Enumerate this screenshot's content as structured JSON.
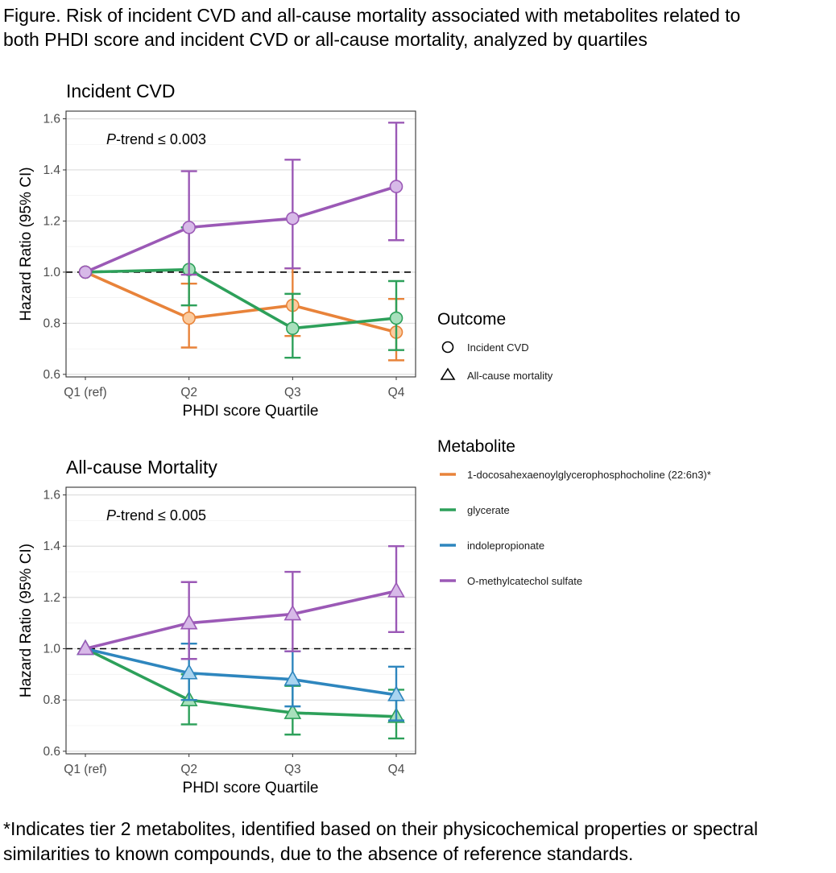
{
  "figure": {
    "title_line1": "Figure. Risk of incident CVD and all-cause mortality associated with metabolites related to",
    "title_line2": "both PHDI score and incident CVD or all-cause mortality, analyzed by quartiles",
    "footnote_line1": "*Indicates tier 2 metabolites, identified based on their physicochemical properties or spectral",
    "footnote_line2": "similarities to known compounds, due to the absence of reference standards."
  },
  "colors": {
    "1-docosahexaenoylglycerophosphocholine (22:6n3)*": "#E8833A",
    "glycerate": "#2DA05A",
    "indolepropionate": "#2E86BE",
    "O-methylcatechol sulfate": "#9B59B6"
  },
  "fill_colors": {
    "1-docosahexaenoylglycerophosphocholine (22:6n3)*": "#FBCB9E",
    "glycerate": "#A8E0BC",
    "indolepropionate": "#A9D4F0",
    "O-methylcatechol sulfate": "#D7B9E8"
  },
  "legend": {
    "outcome_title": "Outcome",
    "outcome_items": [
      {
        "label": "Incident CVD",
        "shape": "circle"
      },
      {
        "label": "All-cause mortality",
        "shape": "triangle"
      }
    ],
    "metabolite_title": "Metabolite",
    "metabolite_items": [
      "1-docosahexaenoylglycerophosphocholine (22:6n3)*",
      "glycerate",
      "indolepropionate",
      "O-methylcatechol sulfate"
    ]
  },
  "chart_data": [
    {
      "type": "line",
      "title": "Incident CVD",
      "annotation_prefix": "P",
      "annotation_suffix": "-trend ≤ 0.003",
      "xlabel": "PHDI score Quartile",
      "ylabel": "Hazard Ratio (95% CI)",
      "categories": [
        "Q1 (ref)",
        "Q2",
        "Q3",
        "Q4"
      ],
      "ylim": [
        0.59,
        1.63
      ],
      "yticks": [
        "0.6",
        "0.8",
        "1.0",
        "1.2",
        "1.4",
        "1.6"
      ],
      "reference_line": 1.0,
      "marker": "circle",
      "series": [
        {
          "name": "1-docosahexaenoylglycerophosphocholine (22:6n3)*",
          "values": [
            1.0,
            0.82,
            0.87,
            0.765
          ],
          "lower": [
            null,
            0.705,
            0.75,
            0.655
          ],
          "upper": [
            null,
            0.955,
            1.015,
            0.895
          ]
        },
        {
          "name": "glycerate",
          "values": [
            1.0,
            1.01,
            0.78,
            0.82
          ],
          "lower": [
            null,
            0.87,
            0.665,
            0.695
          ],
          "upper": [
            null,
            1.175,
            0.915,
            0.965
          ]
        },
        {
          "name": "O-methylcatechol sulfate",
          "values": [
            1.0,
            1.175,
            1.21,
            1.335
          ],
          "lower": [
            null,
            0.99,
            1.015,
            1.125
          ],
          "upper": [
            null,
            1.395,
            1.44,
            1.585
          ]
        }
      ]
    },
    {
      "type": "line",
      "title": "All-cause Mortality",
      "annotation_prefix": "P",
      "annotation_suffix": "-trend ≤ 0.005",
      "xlabel": "PHDI score Quartile",
      "ylabel": "Hazard Ratio (95% CI)",
      "categories": [
        "Q1 (ref)",
        "Q2",
        "Q3",
        "Q4"
      ],
      "ylim": [
        0.59,
        1.63
      ],
      "yticks": [
        "0.6",
        "0.8",
        "1.0",
        "1.2",
        "1.4",
        "1.6"
      ],
      "reference_line": 1.0,
      "marker": "triangle",
      "series": [
        {
          "name": "glycerate",
          "values": [
            1.0,
            0.8,
            0.75,
            0.735
          ],
          "lower": [
            null,
            0.705,
            0.665,
            0.65
          ],
          "upper": [
            null,
            0.9,
            0.855,
            0.84
          ]
        },
        {
          "name": "indolepropionate",
          "values": [
            1.0,
            0.905,
            0.88,
            0.82
          ],
          "lower": [
            null,
            0.8,
            0.775,
            0.72
          ],
          "upper": [
            null,
            1.02,
            0.99,
            0.93
          ]
        },
        {
          "name": "O-methylcatechol sulfate",
          "values": [
            1.0,
            1.1,
            1.135,
            1.225
          ],
          "lower": [
            null,
            0.96,
            0.99,
            1.065
          ],
          "upper": [
            null,
            1.26,
            1.3,
            1.4
          ]
        }
      ]
    }
  ]
}
